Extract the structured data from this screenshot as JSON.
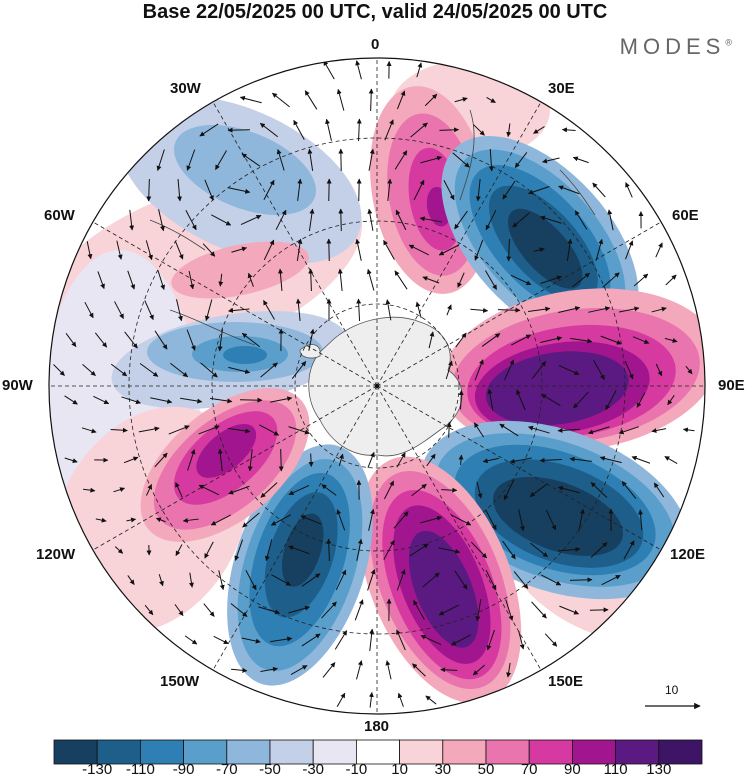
{
  "title": "Base 22/05/2025 00 UTC, valid 24/05/2025 00 UTC",
  "brand": "MODES",
  "brand_mark": "®",
  "longitude_labels": {
    "lon_0": "0",
    "lon_30e": "30E",
    "lon_60e": "60E",
    "lon_90e": "90E",
    "lon_120e": "120E",
    "lon_150e": "150E",
    "lon_180": "180",
    "lon_150w": "150W",
    "lon_120w": "120W",
    "lon_90w": "90W",
    "lon_60w": "60W",
    "lon_30w": "30W"
  },
  "reference_vector": {
    "label": "10",
    "magnitude": 10
  },
  "colorbar": {
    "levels": [
      "-130",
      "-110",
      "-90",
      "-70",
      "-50",
      "-30",
      "-10",
      "10",
      "30",
      "50",
      "70",
      "90",
      "110",
      "130"
    ],
    "colors": [
      "#173f5f",
      "#1d5f8a",
      "#2e7fb3",
      "#5a9fcb",
      "#8fb7db",
      "#c4cfe8",
      "#e8e6f2",
      "#ffffff",
      "#f8d3d8",
      "#f3a8bb",
      "#ea74ad",
      "#d63aa0",
      "#a1168f",
      "#5b1a82",
      "#3e1466"
    ]
  },
  "map_features": {
    "projection": "south-polar-stereographic",
    "graticule": "dashed",
    "field": "geopotential-height-anomaly",
    "overlay": "wind-vectors"
  }
}
